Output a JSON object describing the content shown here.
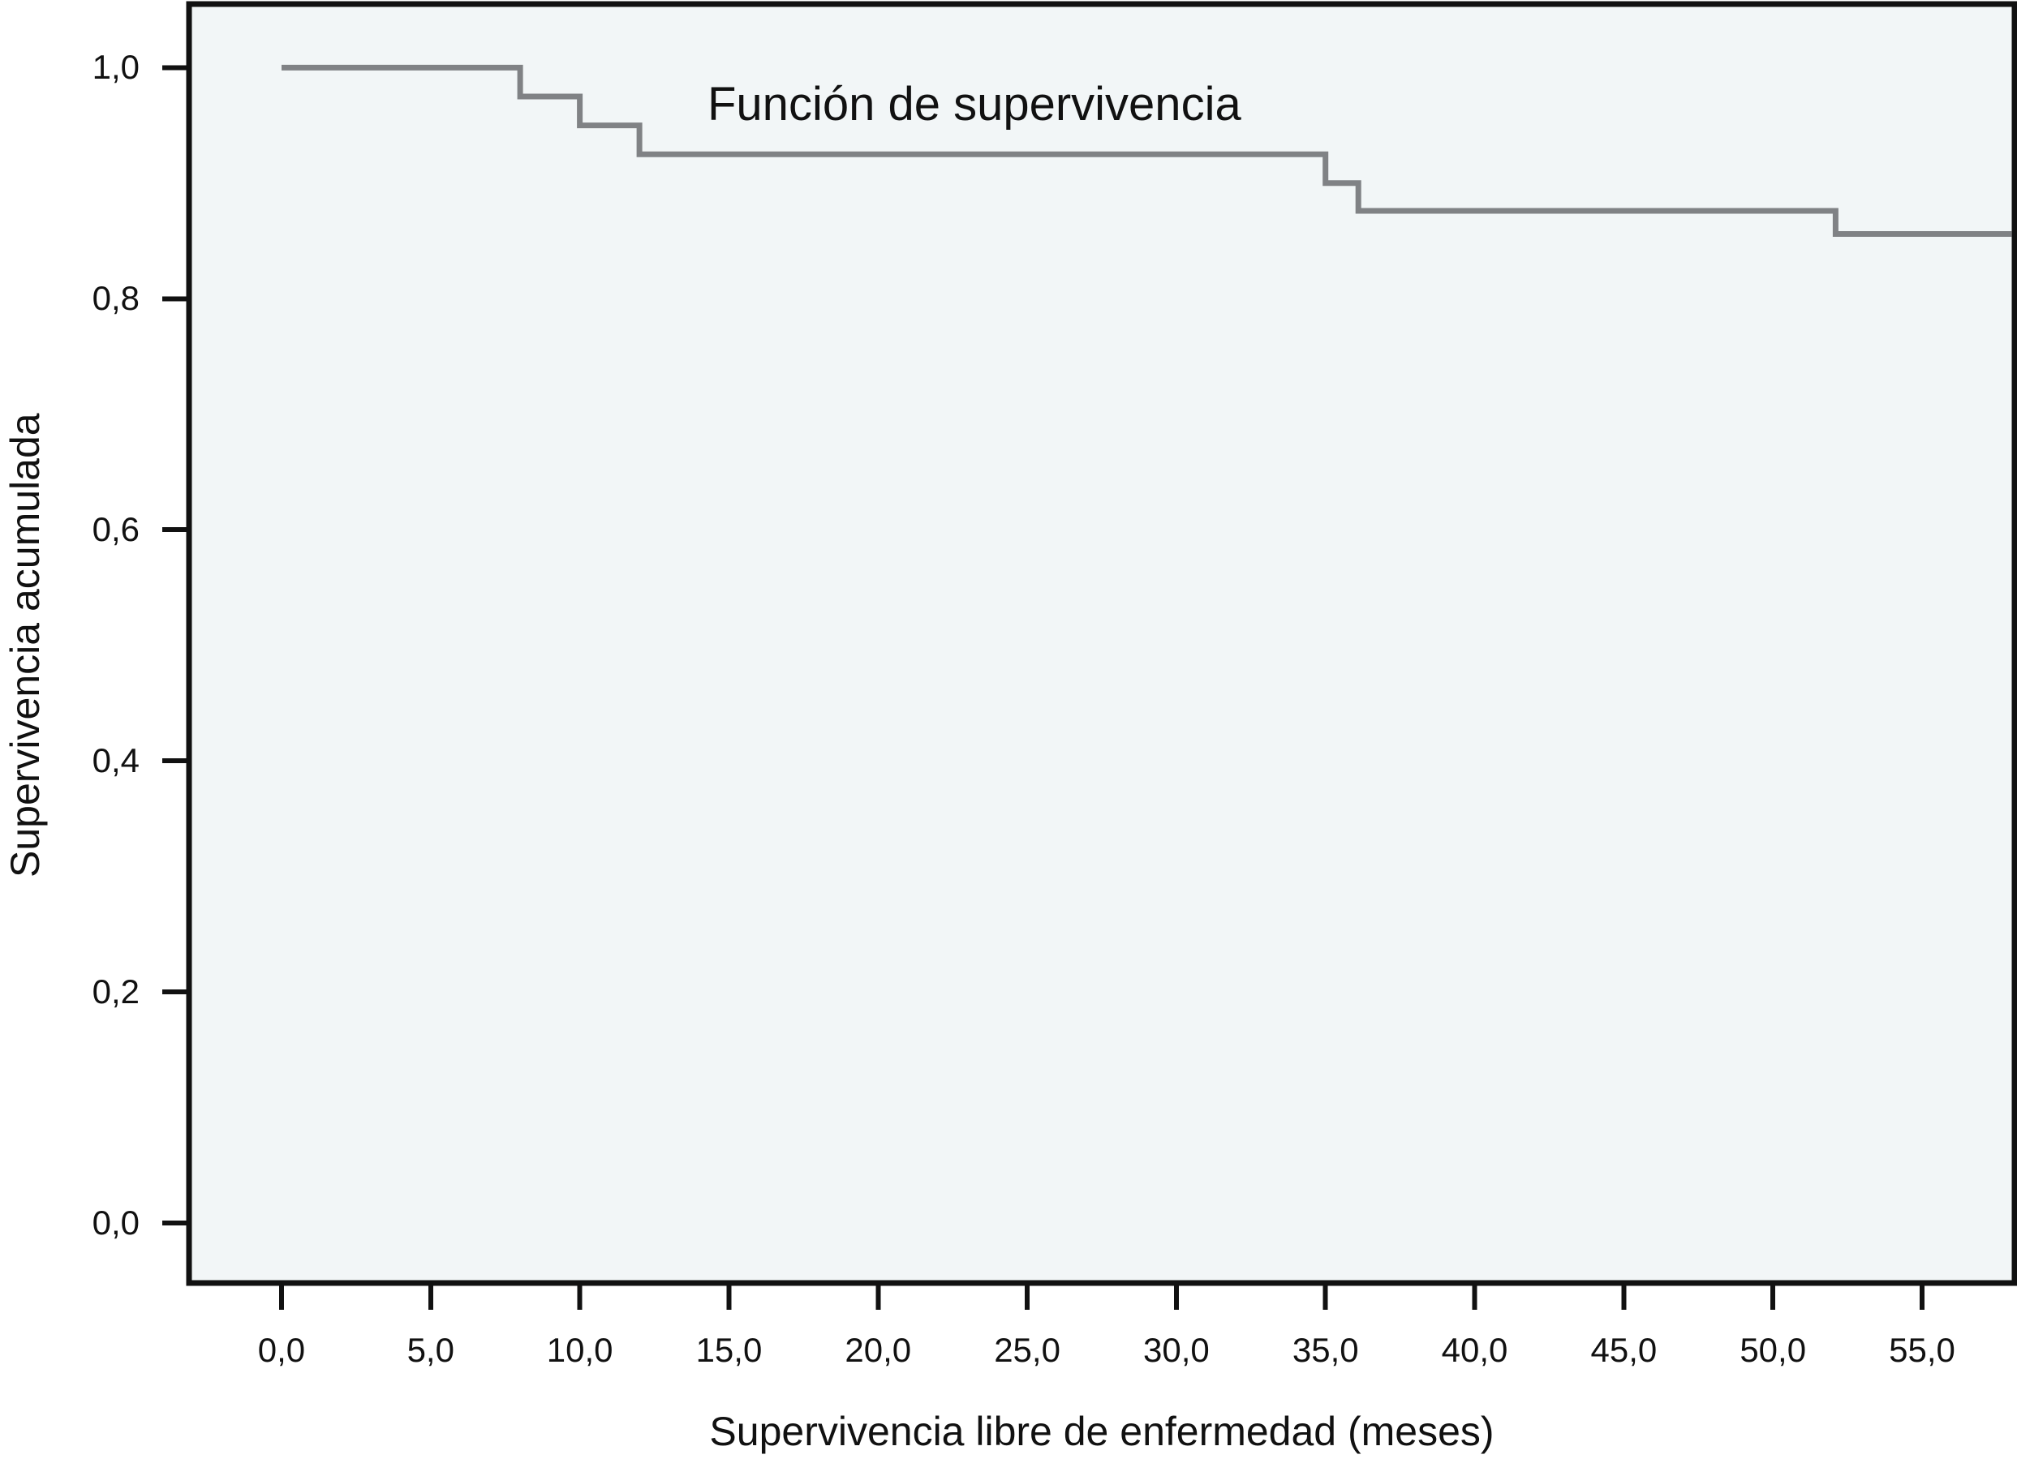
{
  "title": "Función de supervivencia",
  "x_axis": {
    "label": "Supervivencia libre de enfermedad (meses)",
    "tick_labels": [
      "0,0",
      "5,0",
      "10,0",
      "15,0",
      "20,0",
      "25,0",
      "30,0",
      "35,0",
      "40,0",
      "45,0",
      "50,0",
      "55,0"
    ],
    "tick_values": [
      0,
      5,
      10,
      15,
      20,
      25,
      30,
      35,
      40,
      45,
      50,
      55
    ]
  },
  "y_axis": {
    "label": "Supervivencia acumulada",
    "tick_labels": [
      "1,0",
      "0,8",
      "0,6",
      "0,4",
      "0,2",
      "0,0"
    ],
    "tick_values": [
      1.0,
      0.8,
      0.6,
      0.4,
      0.2,
      0.0
    ]
  },
  "chart_data": {
    "type": "line",
    "subtype": "kaplan-meier-step",
    "title": "Función de supervivencia",
    "xlabel": "Supervivencia libre de enfermedad (meses)",
    "ylabel": "Supervivencia acumulada",
    "x_ticks": [
      0,
      5,
      10,
      15,
      20,
      25,
      30,
      35,
      40,
      45,
      50,
      55
    ],
    "y_ticks": [
      0.0,
      0.2,
      0.4,
      0.6,
      0.8,
      1.0
    ],
    "xlim": [
      -3.1,
      58.1
    ],
    "ylim": [
      -0.052,
      1.055
    ],
    "grid": false,
    "legend_position": "none",
    "series": [
      {
        "name": "Función de supervivencia",
        "step": "post",
        "x": [
          0,
          8,
          10,
          12,
          35,
          36.1,
          52.1
        ],
        "y": [
          1.0,
          0.975,
          0.95,
          0.925,
          0.9,
          0.876,
          0.856
        ],
        "end_x": 58.0
      }
    ]
  },
  "colors": {
    "curve": "#808285",
    "frame": "#111111",
    "plot_background": "#f2f6f7",
    "page_background": "#ffffff",
    "text": "#111111"
  }
}
